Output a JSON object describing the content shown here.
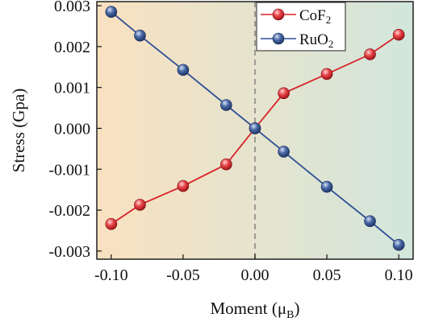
{
  "chart_data": {
    "type": "line",
    "xlabel": "Moment (μ",
    "xlabel_sub": "B",
    "xlabel_close": ")",
    "ylabel": "Stress (Gpa)",
    "xlim": [
      -0.11,
      0.11
    ],
    "ylim": [
      -0.0032,
      0.0031
    ],
    "x": [
      -0.1,
      -0.08,
      -0.05,
      -0.02,
      0.0,
      0.02,
      0.05,
      0.08,
      0.1
    ],
    "xticks": [
      -0.1,
      -0.05,
      0.0,
      0.05,
      0.1
    ],
    "xtick_labels": [
      "-0.10",
      "-0.05",
      "0.00",
      "0.05",
      "0.10"
    ],
    "yticks": [
      -0.003,
      -0.002,
      -0.001,
      0.0,
      0.001,
      0.002,
      0.003
    ],
    "ytick_labels": [
      "-0.003",
      "-0.002",
      "-0.001",
      "0.000",
      "0.001",
      "0.002",
      "0.003"
    ],
    "reference_line_x": 0.0,
    "grid": false,
    "legend_position": "top-right",
    "background_gradient": [
      "#f9e1c0",
      "#d2e6dc"
    ],
    "series": [
      {
        "name": "CoF",
        "name_sub": "2",
        "color": "#d8232a",
        "line_color": "#d8232a",
        "values": [
          -0.00234,
          -0.00187,
          -0.00141,
          -0.00088,
          0.0,
          0.00086,
          0.00133,
          0.00181,
          0.00229
        ]
      },
      {
        "name": "RuO",
        "name_sub": "2",
        "color": "#2f4f8f",
        "line_color": "#2e4f96",
        "values": [
          0.00285,
          0.00227,
          0.00143,
          0.00057,
          0.0,
          -0.00057,
          -0.00143,
          -0.00227,
          -0.00285
        ]
      }
    ]
  }
}
